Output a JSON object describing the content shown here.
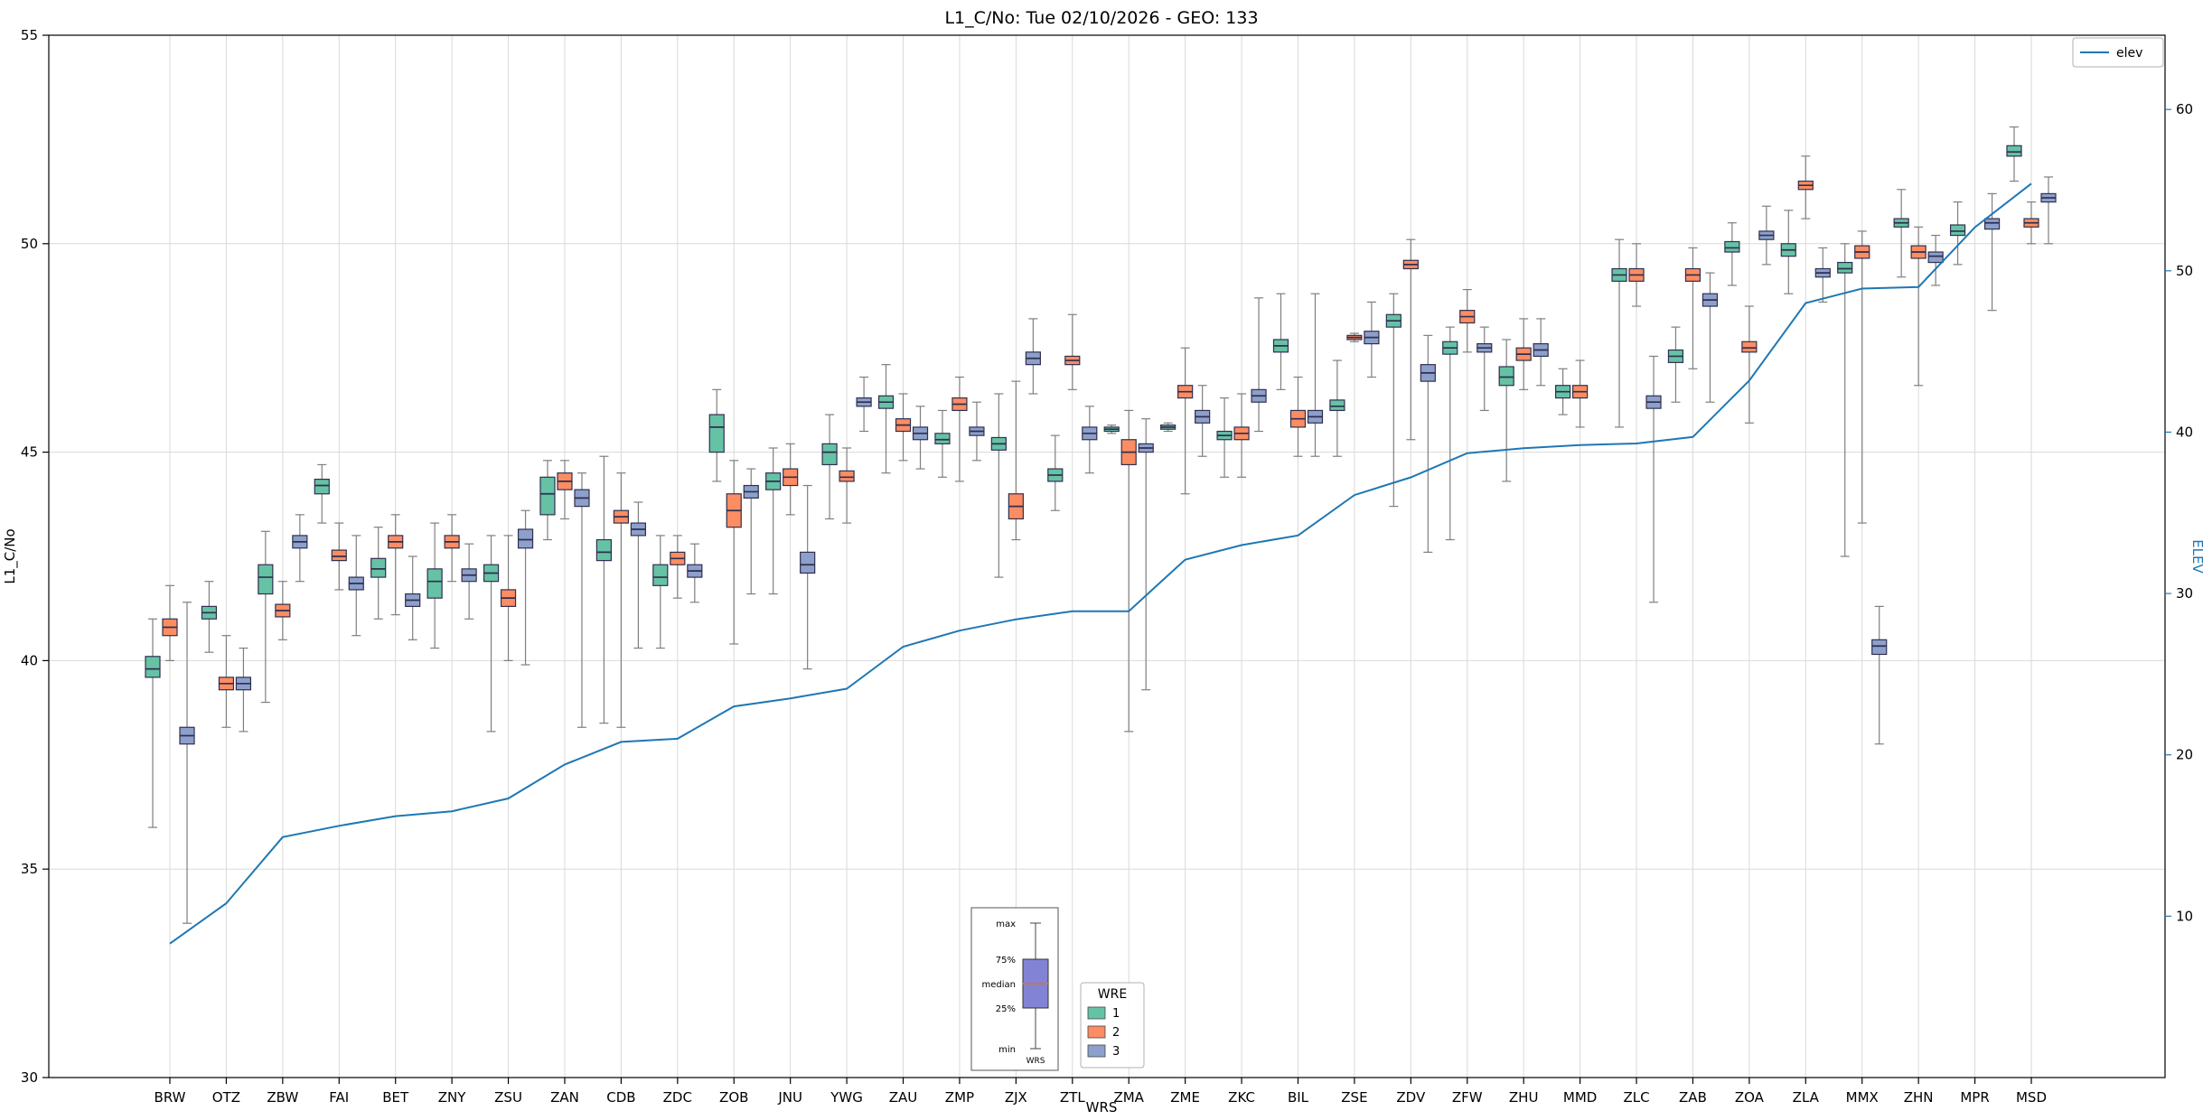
{
  "title": "L1_C/No: Tue 02/10/2026 - GEO: 133",
  "legend": {
    "elev_label": "elev",
    "wre_title": "WRE",
    "wre_items": [
      {
        "label": "1",
        "color": "#66c2a5"
      },
      {
        "label": "2",
        "color": "#fc8d62"
      },
      {
        "label": "3",
        "color": "#8da0cb"
      }
    ]
  },
  "inset": {
    "labels": [
      "max",
      "75%",
      "median",
      "25%",
      "min"
    ],
    "xtick_label": "WRS",
    "box_color": "#8383d6",
    "median_color": "#c8764f"
  },
  "chart_data": {
    "type": "boxplot+line",
    "title": "L1_C/No: Tue 02/10/2026 - GEO: 133",
    "xlabel": "WRS",
    "ylabel_left": "L1_C/No",
    "ylabel_right": "ELEV",
    "ylim_left": [
      30,
      55
    ],
    "yticks_left": [
      30,
      35,
      40,
      45,
      50,
      55
    ],
    "ylim_right": [
      0,
      64.6
    ],
    "yticks_right": [
      10,
      20,
      30,
      40,
      50,
      60
    ],
    "grid": true,
    "legend_position": "upper-right",
    "categories": [
      "BRW",
      "OTZ",
      "ZBW",
      "FAI",
      "BET",
      "ZNY",
      "ZSU",
      "ZAN",
      "CDB",
      "ZDC",
      "ZOB",
      "JNU",
      "YWG",
      "ZAU",
      "ZMP",
      "ZJX",
      "ZTL",
      "ZMA",
      "ZME",
      "ZKC",
      "BIL",
      "ZSE",
      "ZDV",
      "ZFW",
      "ZHU",
      "MMD",
      "ZLC",
      "ZAB",
      "ZOA",
      "ZLA",
      "MMX",
      "ZHN",
      "MPR",
      "MSD"
    ],
    "box_format": "[whisker_min, q1, median, q3, whisker_max]",
    "box_series": [
      {
        "name": "1",
        "color": "#66c2a5",
        "boxes": [
          [
            36.0,
            39.6,
            39.8,
            40.1,
            41.0
          ],
          [
            40.2,
            41.0,
            41.15,
            41.3,
            41.9
          ],
          [
            39.0,
            41.6,
            42.0,
            42.3,
            43.1
          ],
          [
            43.3,
            44.0,
            44.2,
            44.35,
            44.7
          ],
          [
            41.0,
            42.0,
            42.2,
            42.45,
            43.2
          ],
          [
            40.3,
            41.5,
            41.9,
            42.2,
            43.3
          ],
          [
            38.3,
            41.9,
            42.1,
            42.3,
            43.0
          ],
          [
            42.9,
            43.5,
            44.0,
            44.4,
            44.8
          ],
          [
            38.5,
            42.4,
            42.6,
            42.9,
            44.9
          ],
          [
            40.3,
            41.8,
            42.0,
            42.3,
            43.0
          ],
          [
            44.3,
            45.0,
            45.6,
            45.9,
            46.5
          ],
          [
            41.6,
            44.1,
            44.3,
            44.5,
            45.1
          ],
          [
            43.4,
            44.7,
            45.0,
            45.2,
            45.9
          ],
          [
            44.5,
            46.05,
            46.2,
            46.35,
            47.1
          ],
          [
            44.4,
            45.2,
            45.3,
            45.45,
            46.0
          ],
          [
            42.0,
            45.05,
            45.2,
            45.35,
            46.4
          ],
          [
            43.6,
            44.3,
            44.45,
            44.6,
            45.4
          ],
          [
            45.45,
            45.5,
            45.55,
            45.6,
            45.65
          ],
          [
            45.5,
            45.55,
            45.6,
            45.65,
            45.7
          ],
          [
            44.4,
            45.3,
            45.4,
            45.5,
            46.3
          ],
          [
            46.5,
            47.4,
            47.55,
            47.7,
            48.8
          ],
          [
            44.9,
            46.0,
            46.1,
            46.25,
            47.2
          ],
          [
            43.7,
            48.0,
            48.15,
            48.3,
            48.8
          ],
          [
            42.9,
            47.35,
            47.5,
            47.65,
            48.0
          ],
          [
            44.3,
            46.6,
            46.8,
            47.05,
            47.7
          ],
          [
            45.9,
            46.3,
            46.45,
            46.6,
            47.0
          ],
          [
            45.6,
            49.1,
            49.25,
            49.4,
            50.1
          ],
          [
            46.2,
            47.15,
            47.3,
            47.45,
            48.0
          ],
          [
            49.0,
            49.8,
            49.9,
            50.05,
            50.5
          ],
          [
            48.8,
            49.7,
            49.85,
            50.0,
            50.8
          ],
          [
            42.5,
            49.3,
            49.4,
            49.55,
            50.0
          ],
          [
            49.2,
            50.4,
            50.5,
            50.6,
            51.3
          ],
          [
            49.5,
            50.2,
            50.3,
            50.45,
            51.0
          ],
          [
            51.5,
            52.1,
            52.2,
            52.35,
            52.8
          ]
        ]
      },
      {
        "name": "2",
        "color": "#fc8d62",
        "boxes": [
          [
            40.0,
            40.6,
            40.8,
            41.0,
            41.8
          ],
          [
            38.4,
            39.3,
            39.45,
            39.6,
            40.6
          ],
          [
            40.5,
            41.05,
            41.2,
            41.35,
            41.9
          ],
          [
            41.7,
            42.4,
            42.5,
            42.65,
            43.3
          ],
          [
            41.1,
            42.7,
            42.85,
            43.0,
            43.5
          ],
          [
            41.9,
            42.7,
            42.85,
            43.0,
            43.5
          ],
          [
            40.0,
            41.3,
            41.5,
            41.7,
            43.0
          ],
          [
            43.4,
            44.1,
            44.3,
            44.5,
            44.8
          ],
          [
            38.4,
            43.3,
            43.45,
            43.6,
            44.5
          ],
          [
            41.5,
            42.3,
            42.45,
            42.6,
            43.0
          ],
          [
            40.4,
            43.2,
            43.6,
            44.0,
            44.8
          ],
          [
            43.5,
            44.2,
            44.4,
            44.6,
            45.2
          ],
          [
            43.3,
            44.3,
            44.4,
            44.55,
            45.1
          ],
          [
            44.8,
            45.5,
            45.65,
            45.8,
            46.4
          ],
          [
            44.3,
            46.0,
            46.15,
            46.3,
            46.8
          ],
          [
            42.9,
            43.4,
            43.7,
            44.0,
            46.7
          ],
          [
            46.5,
            47.1,
            47.2,
            47.3,
            48.3
          ],
          [
            38.3,
            44.7,
            45.0,
            45.3,
            46.0
          ],
          [
            44.0,
            46.3,
            46.45,
            46.6,
            47.5
          ],
          [
            44.4,
            45.3,
            45.45,
            45.6,
            46.4
          ],
          [
            44.9,
            45.6,
            45.8,
            46.0,
            46.8
          ],
          [
            47.65,
            47.7,
            47.75,
            47.8,
            47.85
          ],
          [
            45.3,
            49.4,
            49.5,
            49.6,
            50.1
          ],
          [
            47.4,
            48.1,
            48.25,
            48.4,
            48.9
          ],
          [
            46.5,
            47.2,
            47.35,
            47.5,
            48.2
          ],
          [
            45.6,
            46.3,
            46.45,
            46.6,
            47.2
          ],
          [
            48.5,
            49.1,
            49.25,
            49.4,
            50.0
          ],
          [
            47.0,
            49.1,
            49.25,
            49.4,
            49.9
          ],
          [
            45.7,
            47.4,
            47.5,
            47.65,
            48.5
          ],
          [
            50.6,
            51.3,
            51.4,
            51.5,
            52.1
          ],
          [
            43.3,
            49.65,
            49.8,
            49.95,
            50.3
          ],
          [
            46.6,
            49.65,
            49.8,
            49.95,
            50.4
          ],
          null,
          [
            50.0,
            50.4,
            50.5,
            50.6,
            51.0
          ]
        ]
      },
      {
        "name": "3",
        "color": "#8da0cb",
        "boxes": [
          [
            33.7,
            38.0,
            38.2,
            38.4,
            41.4
          ],
          [
            38.3,
            39.3,
            39.45,
            39.6,
            40.3
          ],
          [
            41.9,
            42.7,
            42.85,
            43.0,
            43.5
          ],
          [
            40.6,
            41.7,
            41.85,
            42.0,
            43.0
          ],
          [
            40.5,
            41.3,
            41.45,
            41.6,
            42.5
          ],
          [
            41.0,
            41.9,
            42.05,
            42.2,
            42.8
          ],
          [
            39.9,
            42.7,
            42.9,
            43.15,
            43.6
          ],
          [
            38.4,
            43.7,
            43.9,
            44.1,
            44.5
          ],
          [
            40.3,
            43.0,
            43.15,
            43.3,
            43.8
          ],
          [
            41.4,
            42.0,
            42.15,
            42.3,
            42.8
          ],
          [
            41.6,
            43.9,
            44.05,
            44.2,
            44.6
          ],
          [
            39.8,
            42.1,
            42.3,
            42.6,
            44.2
          ],
          [
            45.5,
            46.1,
            46.2,
            46.3,
            46.8
          ],
          [
            44.6,
            45.3,
            45.45,
            45.6,
            46.1
          ],
          [
            44.8,
            45.4,
            45.5,
            45.6,
            46.2
          ],
          [
            46.4,
            47.1,
            47.25,
            47.4,
            48.2
          ],
          [
            44.5,
            45.3,
            45.45,
            45.6,
            46.1
          ],
          [
            39.3,
            45.0,
            45.1,
            45.2,
            45.8
          ],
          [
            44.9,
            45.7,
            45.85,
            46.0,
            46.6
          ],
          [
            45.5,
            46.2,
            46.35,
            46.5,
            48.7
          ],
          [
            44.9,
            45.7,
            45.85,
            46.0,
            48.8
          ],
          [
            46.8,
            47.6,
            47.75,
            47.9,
            48.6
          ],
          [
            42.6,
            46.7,
            46.9,
            47.1,
            47.8
          ],
          [
            46.0,
            47.4,
            47.5,
            47.6,
            48.0
          ],
          [
            46.6,
            47.3,
            47.45,
            47.6,
            48.2
          ],
          null,
          [
            41.4,
            46.05,
            46.2,
            46.35,
            47.3
          ],
          [
            46.2,
            48.5,
            48.65,
            48.8,
            49.3
          ],
          [
            49.5,
            50.1,
            50.2,
            50.3,
            50.9
          ],
          [
            48.6,
            49.2,
            49.3,
            49.4,
            49.9
          ],
          [
            38.0,
            40.15,
            40.35,
            40.5,
            41.3
          ],
          [
            49.0,
            49.55,
            49.7,
            49.8,
            50.2
          ],
          [
            48.4,
            50.35,
            50.5,
            50.6,
            51.2
          ],
          [
            50.0,
            51.0,
            51.1,
            51.2,
            51.6
          ]
        ]
      }
    ],
    "line_series": {
      "name": "elev",
      "color": "#1f77b4",
      "axis": "right",
      "values": [
        8.3,
        10.8,
        14.9,
        15.6,
        16.2,
        16.5,
        17.3,
        19.4,
        20.8,
        21.0,
        23.0,
        23.5,
        24.1,
        26.7,
        27.7,
        28.4,
        28.9,
        28.9,
        32.1,
        33.0,
        33.6,
        36.1,
        37.2,
        38.7,
        39.0,
        39.2,
        39.3,
        39.7,
        43.2,
        48.0,
        48.9,
        49.0,
        52.7,
        55.4
      ]
    }
  }
}
